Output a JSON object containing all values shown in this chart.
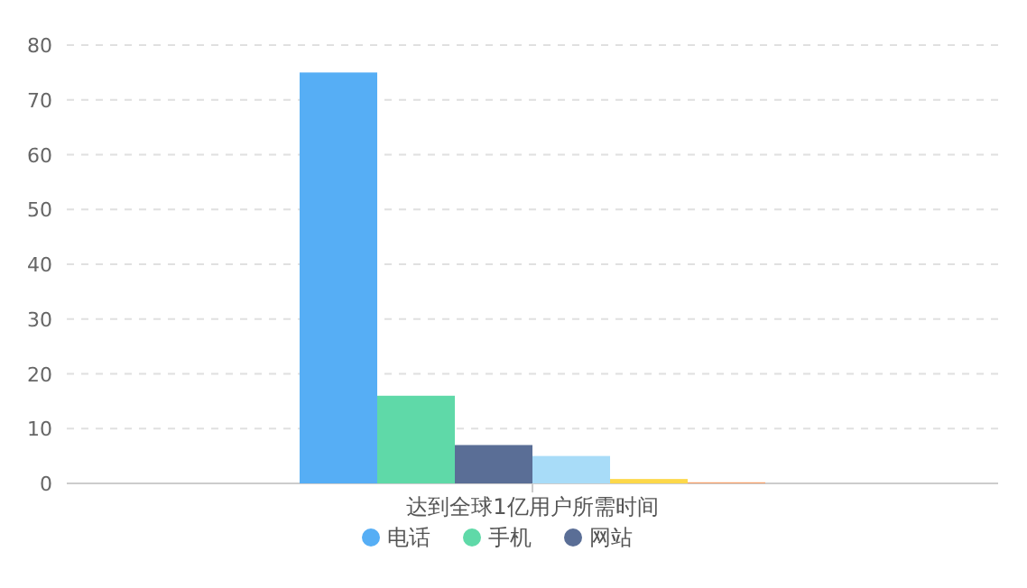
{
  "chart_data": {
    "type": "bar",
    "categories": [
      "达到全球1亿用户所需时间"
    ],
    "series": [
      {
        "name": "电话",
        "color": "#56aef5",
        "values": [
          75
        ]
      },
      {
        "name": "手机",
        "color": "#5fd9a8",
        "values": [
          16
        ]
      },
      {
        "name": "网站",
        "color": "#5a6e96",
        "values": [
          7
        ]
      },
      {
        "color": "#a8dcf8",
        "values": [
          5
        ]
      },
      {
        "color": "#fdd84a",
        "values": [
          0.8
        ]
      },
      {
        "color": "#f6a06a",
        "values": [
          0.2
        ]
      }
    ],
    "ylim": [
      0,
      80
    ],
    "yticks": [
      0,
      10,
      20,
      30,
      40,
      50,
      60,
      70,
      80
    ],
    "grid": "y",
    "legend": "bottom"
  }
}
